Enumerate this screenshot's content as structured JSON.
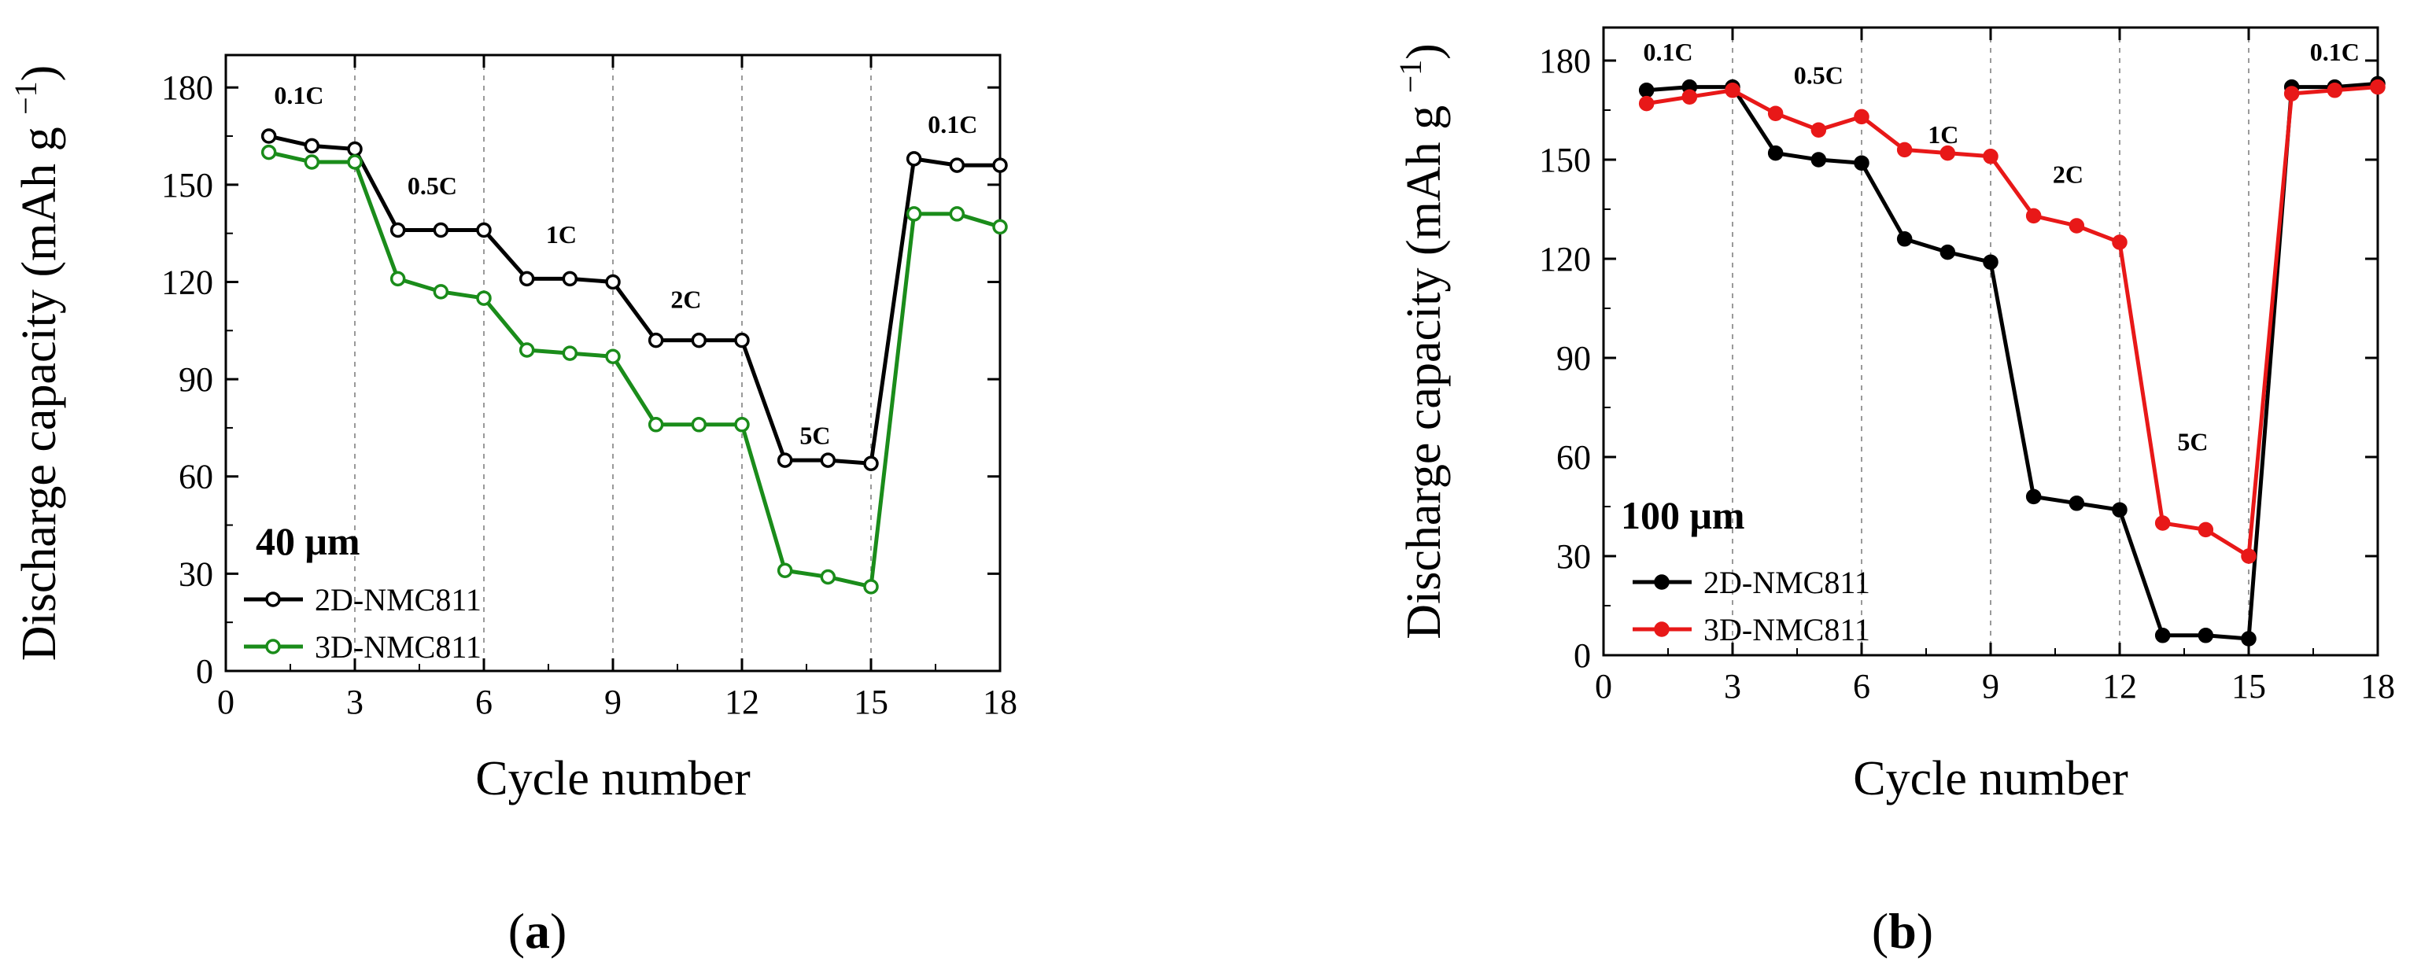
{
  "chart_data": [
    {
      "panel": "a",
      "type": "line",
      "panel_label": "(a)",
      "panel_letter": "a",
      "thickness_label": "40 μm",
      "xlabel": "Cycle number",
      "ylabel": "Discharge capacity (mAh g",
      "ylabel_sup": "−1",
      "ylabel_close": ")",
      "xlim": [
        0,
        18
      ],
      "ylim": [
        0,
        190
      ],
      "x_ticks": [
        "0",
        "3",
        "6",
        "9",
        "12",
        "15",
        "18"
      ],
      "y_ticks": [
        "0",
        "30",
        "60",
        "90",
        "120",
        "150",
        "180"
      ],
      "rate_labels": [
        {
          "text": "0.1C",
          "x": 1.7,
          "y": 175
        },
        {
          "text": "0.5C",
          "x": 4.8,
          "y": 147
        },
        {
          "text": "1C",
          "x": 7.8,
          "y": 132
        },
        {
          "text": "2C",
          "x": 10.7,
          "y": 112
        },
        {
          "text": "5C",
          "x": 13.7,
          "y": 70
        },
        {
          "text": "0.1C",
          "x": 16.9,
          "y": 166
        }
      ],
      "x": [
        1,
        2,
        3,
        4,
        5,
        6,
        7,
        8,
        9,
        10,
        11,
        12,
        13,
        14,
        15,
        16,
        17,
        18
      ],
      "series": [
        {
          "name": "2D-NMC811",
          "color": "#000000",
          "marker": "open-circle",
          "values": [
            165,
            162,
            161,
            136,
            136,
            136,
            121,
            121,
            120,
            102,
            102,
            102,
            65,
            65,
            64,
            158,
            156,
            156
          ]
        },
        {
          "name": "3D-NMC811",
          "color": "#1a8c1a",
          "marker": "open-circle",
          "values": [
            160,
            157,
            157,
            121,
            117,
            115,
            99,
            98,
            97,
            76,
            76,
            76,
            31,
            29,
            26,
            141,
            141,
            137
          ]
        }
      ]
    },
    {
      "panel": "b",
      "type": "line",
      "panel_label": "(b)",
      "panel_letter": "b",
      "thickness_label": "100 μm",
      "xlabel": "Cycle number",
      "ylabel": "Discharge capacity (mAh g",
      "ylabel_sup": "−1",
      "ylabel_close": ")",
      "xlim": [
        0,
        18
      ],
      "ylim": [
        0,
        190
      ],
      "x_ticks": [
        "0",
        "3",
        "6",
        "9",
        "12",
        "15",
        "18"
      ],
      "y_ticks": [
        "0",
        "30",
        "60",
        "90",
        "120",
        "150",
        "180"
      ],
      "rate_labels": [
        {
          "text": "0.1C",
          "x": 1.5,
          "y": 180
        },
        {
          "text": "0.5C",
          "x": 5.0,
          "y": 173
        },
        {
          "text": "1C",
          "x": 7.9,
          "y": 155
        },
        {
          "text": "2C",
          "x": 10.8,
          "y": 143
        },
        {
          "text": "5C",
          "x": 13.7,
          "y": 62
        },
        {
          "text": "0.1C",
          "x": 17.0,
          "y": 180
        }
      ],
      "x": [
        1,
        2,
        3,
        4,
        5,
        6,
        7,
        8,
        9,
        10,
        11,
        12,
        13,
        14,
        15,
        16,
        17,
        18
      ],
      "series": [
        {
          "name": "2D-NMC811",
          "color": "#000000",
          "marker": "filled-circle",
          "values": [
            171,
            172,
            172,
            152,
            150,
            149,
            126,
            122,
            119,
            48,
            46,
            44,
            6,
            6,
            5,
            172,
            172,
            173
          ]
        },
        {
          "name": "3D-NMC811",
          "color": "#e81818",
          "marker": "filled-circle",
          "values": [
            167,
            169,
            171,
            164,
            159,
            163,
            153,
            152,
            151,
            133,
            130,
            125,
            40,
            38,
            30,
            170,
            171,
            172
          ]
        }
      ]
    }
  ]
}
